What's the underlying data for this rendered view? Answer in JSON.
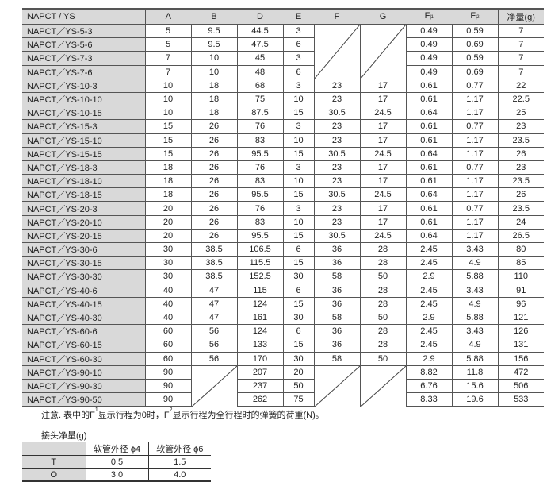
{
  "main_table": {
    "headers": [
      "NAPCT / YS",
      "A",
      "B",
      "D",
      "E",
      "F",
      "G",
      "F|1",
      "F|2",
      "净量(g)"
    ],
    "rows": [
      [
        "NAPCT／YS-5-3",
        "5",
        "9.5",
        "44.5",
        "3",
        null,
        null,
        "0.49",
        "0.59",
        "7"
      ],
      [
        "NAPCT／YS-5-6",
        "5",
        "9.5",
        "47.5",
        "6",
        null,
        null,
        "0.49",
        "0.69",
        "7"
      ],
      [
        "NAPCT／YS-7-3",
        "7",
        "10",
        "45",
        "3",
        null,
        null,
        "0.49",
        "0.59",
        "7"
      ],
      [
        "NAPCT／YS-7-6",
        "7",
        "10",
        "48",
        "6",
        null,
        null,
        "0.49",
        "0.69",
        "7"
      ],
      [
        "NAPCT／YS-10-3",
        "10",
        "18",
        "68",
        "3",
        "23",
        "17",
        "0.61",
        "0.77",
        "22"
      ],
      [
        "NAPCT／YS-10-10",
        "10",
        "18",
        "75",
        "10",
        "23",
        "17",
        "0.61",
        "1.17",
        "22.5"
      ],
      [
        "NAPCT／YS-10-15",
        "10",
        "18",
        "87.5",
        "15",
        "30.5",
        "24.5",
        "0.64",
        "1.17",
        "25"
      ],
      [
        "NAPCT／YS-15-3",
        "15",
        "26",
        "76",
        "3",
        "23",
        "17",
        "0.61",
        "0.77",
        "23"
      ],
      [
        "NAPCT／YS-15-10",
        "15",
        "26",
        "83",
        "10",
        "23",
        "17",
        "0.61",
        "1.17",
        "23.5"
      ],
      [
        "NAPCT／YS-15-15",
        "15",
        "26",
        "95.5",
        "15",
        "30.5",
        "24.5",
        "0.64",
        "1.17",
        "26"
      ],
      [
        "NAPCT／YS-18-3",
        "18",
        "26",
        "76",
        "3",
        "23",
        "17",
        "0.61",
        "0.77",
        "23"
      ],
      [
        "NAPCT／YS-18-10",
        "18",
        "26",
        "83",
        "10",
        "23",
        "17",
        "0.61",
        "1.17",
        "23.5"
      ],
      [
        "NAPCT／YS-18-15",
        "18",
        "26",
        "95.5",
        "15",
        "30.5",
        "24.5",
        "0.64",
        "1.17",
        "26"
      ],
      [
        "NAPCT／YS-20-3",
        "20",
        "26",
        "76",
        "3",
        "23",
        "17",
        "0.61",
        "0.77",
        "23.5"
      ],
      [
        "NAPCT／YS-20-10",
        "20",
        "26",
        "83",
        "10",
        "23",
        "17",
        "0.61",
        "1.17",
        "24"
      ],
      [
        "NAPCT／YS-20-15",
        "20",
        "26",
        "95.5",
        "15",
        "30.5",
        "24.5",
        "0.64",
        "1.17",
        "26.5"
      ],
      [
        "NAPCT／YS-30-6",
        "30",
        "38.5",
        "106.5",
        "6",
        "36",
        "28",
        "2.45",
        "3.43",
        "80"
      ],
      [
        "NAPCT／YS-30-15",
        "30",
        "38.5",
        "115.5",
        "15",
        "36",
        "28",
        "2.45",
        "4.9",
        "85"
      ],
      [
        "NAPCT／YS-30-30",
        "30",
        "38.5",
        "152.5",
        "30",
        "58",
        "50",
        "2.9",
        "5.88",
        "110"
      ],
      [
        "NAPCT／YS-40-6",
        "40",
        "47",
        "115",
        "6",
        "36",
        "28",
        "2.45",
        "3.43",
        "91"
      ],
      [
        "NAPCT／YS-40-15",
        "40",
        "47",
        "124",
        "15",
        "36",
        "28",
        "2.45",
        "4.9",
        "96"
      ],
      [
        "NAPCT／YS-40-30",
        "40",
        "47",
        "161",
        "30",
        "58",
        "50",
        "2.9",
        "5.88",
        "121"
      ],
      [
        "NAPCT／YS-60-6",
        "60",
        "56",
        "124",
        "6",
        "36",
        "28",
        "2.45",
        "3.43",
        "126"
      ],
      [
        "NAPCT／YS-60-15",
        "60",
        "56",
        "133",
        "15",
        "36",
        "28",
        "2.45",
        "4.9",
        "131"
      ],
      [
        "NAPCT／YS-60-30",
        "60",
        "56",
        "170",
        "30",
        "58",
        "50",
        "2.9",
        "5.88",
        "156"
      ],
      [
        "NAPCT／YS-90-10",
        "90",
        null,
        "207",
        "20",
        null,
        null,
        "8.82",
        "11.8",
        "472"
      ],
      [
        "NAPCT／YS-90-30",
        "90",
        null,
        "237",
        "50",
        null,
        null,
        "6.76",
        "15.6",
        "506"
      ],
      [
        "NAPCT／YS-90-50",
        "90",
        null,
        "262",
        "75",
        null,
        null,
        "8.33",
        "19.6",
        "533"
      ]
    ]
  },
  "note": {
    "prefix": "注意. 表中的F",
    "sup1": "1",
    "mid": "显示行程为0时，F",
    "sup2": "2",
    "suffix": "显示行程为全行程时的弹簧的荷重(N)。"
  },
  "sub_table": {
    "title": "接头净量(g)",
    "headers": [
      "",
      "软管外径 ϕ4",
      "软管外径 ϕ6"
    ],
    "rows": [
      [
        "T",
        "0.5",
        "1.5"
      ],
      [
        "O",
        "3.0",
        "4.0"
      ]
    ]
  }
}
